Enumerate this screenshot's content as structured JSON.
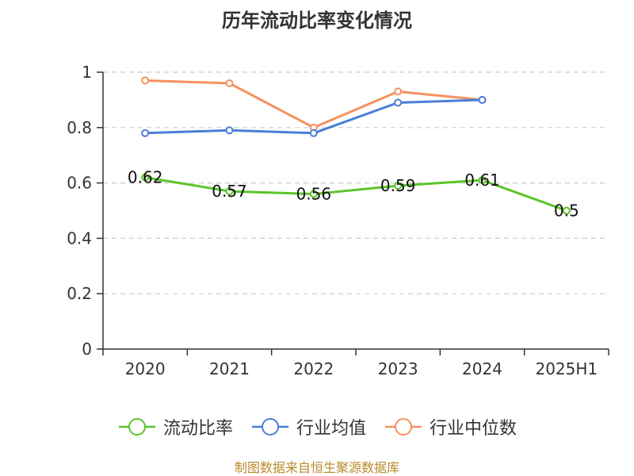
{
  "chart_data": {
    "type": "line",
    "title": "历年流动比率变化情况",
    "categories": [
      "2020",
      "2021",
      "2022",
      "2023",
      "2024",
      "2025H1"
    ],
    "ylim": [
      0,
      1
    ],
    "yticks": [
      0,
      0.2,
      0.4,
      0.6,
      0.8,
      1
    ],
    "ytick_labels": [
      "0",
      "0.2",
      "0.4",
      "0.6",
      "0.8",
      "1"
    ],
    "grid": true,
    "legend_position": "bottom",
    "series": [
      {
        "name": "流动比率",
        "color": "#5bc42a",
        "values": [
          0.62,
          0.57,
          0.56,
          0.59,
          0.61,
          0.5
        ],
        "labels": [
          "0.62",
          "0.57",
          "0.56",
          "0.59",
          "0.61",
          "0.5"
        ]
      },
      {
        "name": "行业均值",
        "color": "#4a7fd9",
        "values": [
          0.78,
          0.79,
          0.78,
          0.89,
          0.9,
          null
        ]
      },
      {
        "name": "行业中位数",
        "color": "#f59160",
        "values": [
          0.97,
          0.96,
          0.8,
          0.93,
          0.9,
          null
        ]
      }
    ]
  },
  "footer": {
    "source": "制图数据来自恒生聚源数据库"
  }
}
